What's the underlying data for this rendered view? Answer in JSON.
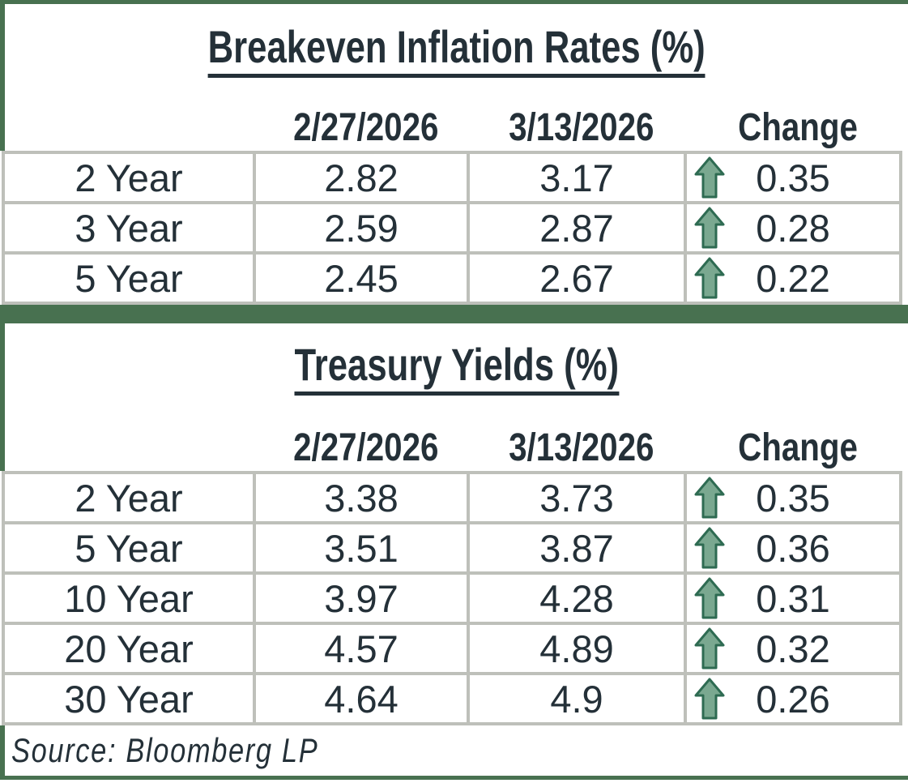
{
  "meta": {
    "source_note": "Source: Bloomberg LP"
  },
  "colors": {
    "accent_green": "#487150",
    "grid_gray": "#BEC0BA",
    "text": "#243038",
    "arrow_fill": "#7AA890",
    "arrow_outline": "#2E6B52"
  },
  "icons": {
    "change_icon": "up-arrow-icon"
  },
  "chart_data": [
    {
      "type": "table",
      "title": "Breakeven Inflation Rates (%)",
      "columns": [
        "",
        "2/27/2026",
        "3/13/2026",
        "Change"
      ],
      "rows": [
        {
          "label": "2 Year",
          "prev": "2.82",
          "curr": "3.17",
          "change": "0.35",
          "direction": "up"
        },
        {
          "label": "3 Year",
          "prev": "2.59",
          "curr": "2.87",
          "change": "0.28",
          "direction": "up"
        },
        {
          "label": "5 Year",
          "prev": "2.45",
          "curr": "2.67",
          "change": "0.22",
          "direction": "up"
        }
      ]
    },
    {
      "type": "table",
      "title": "Treasury Yields (%)",
      "columns": [
        "",
        "2/27/2026",
        "3/13/2026",
        "Change"
      ],
      "rows": [
        {
          "label": "2 Year",
          "prev": "3.38",
          "curr": "3.73",
          "change": "0.35",
          "direction": "up"
        },
        {
          "label": "5 Year",
          "prev": "3.51",
          "curr": "3.87",
          "change": "0.36",
          "direction": "up"
        },
        {
          "label": "10 Year",
          "prev": "3.97",
          "curr": "4.28",
          "change": "0.31",
          "direction": "up"
        },
        {
          "label": "20 Year",
          "prev": "4.57",
          "curr": "4.89",
          "change": "0.32",
          "direction": "up"
        },
        {
          "label": "30 Year",
          "prev": "4.64",
          "curr": "4.9",
          "change": "0.26",
          "direction": "up"
        }
      ]
    }
  ]
}
